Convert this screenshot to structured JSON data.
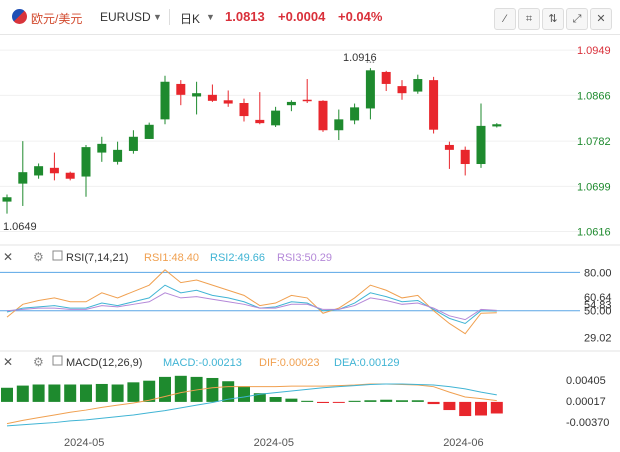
{
  "header": {
    "pair_name": "欧元/美元",
    "symbol": "EURUSD",
    "interval": "日K",
    "price": "1.0813",
    "change": "+0.0004",
    "change_pct": "+0.04%",
    "flag_icon": "eu-us-flag-icon",
    "tool_icons": [
      "draw-line-icon",
      "drawing-tools-icon",
      "indicator-icon",
      "fullscreen-icon",
      "close-icon"
    ]
  },
  "colors": {
    "up": "#1e8a2e",
    "down": "#e8262c",
    "rsi1": "#f0a050",
    "rsi2": "#40b4d4",
    "rsi3": "#b488d8",
    "dif": "#f0a050",
    "dea": "#40b4d4",
    "price_text": "#d9303a"
  },
  "chart_data": [
    {
      "type": "candlestick",
      "ylim": [
        1.0595,
        1.0975
      ],
      "price_ticks": [
        "1.0949",
        "1.0866",
        "1.0782",
        "1.0699",
        "1.0616"
      ],
      "price_tick_values": [
        1.0949,
        1.0866,
        1.0782,
        1.0699,
        1.0616
      ],
      "high_label": "1.0916",
      "low_label": "1.0649",
      "x_ticks": [
        "2024-05",
        "2024-05",
        "2024-06"
      ],
      "x_tick_index": [
        5,
        17,
        29
      ],
      "candles": [
        {
          "o": 1.0671,
          "h": 1.0684,
          "l": 1.0649,
          "c": 1.0679
        },
        {
          "o": 1.0704,
          "h": 1.0782,
          "l": 1.0663,
          "c": 1.0725
        },
        {
          "o": 1.0719,
          "h": 1.0741,
          "l": 1.0713,
          "c": 1.0736
        },
        {
          "o": 1.0733,
          "h": 1.0761,
          "l": 1.071,
          "c": 1.0723
        },
        {
          "o": 1.0724,
          "h": 1.0726,
          "l": 1.071,
          "c": 1.0713
        },
        {
          "o": 1.0717,
          "h": 1.0775,
          "l": 1.068,
          "c": 1.0771
        },
        {
          "o": 1.0761,
          "h": 1.079,
          "l": 1.0744,
          "c": 1.0777
        },
        {
          "o": 1.0744,
          "h": 1.0781,
          "l": 1.0739,
          "c": 1.0766
        },
        {
          "o": 1.0764,
          "h": 1.0802,
          "l": 1.0759,
          "c": 1.079
        },
        {
          "o": 1.0786,
          "h": 1.0816,
          "l": 1.0786,
          "c": 1.0812
        },
        {
          "o": 1.0822,
          "h": 1.0902,
          "l": 1.0813,
          "c": 1.0891
        },
        {
          "o": 1.0887,
          "h": 1.0894,
          "l": 1.0848,
          "c": 1.0867
        },
        {
          "o": 1.0864,
          "h": 1.0891,
          "l": 1.0831,
          "c": 1.087
        },
        {
          "o": 1.0867,
          "h": 1.0886,
          "l": 1.0854,
          "c": 1.0856
        },
        {
          "o": 1.0857,
          "h": 1.0875,
          "l": 1.0845,
          "c": 1.0851
        },
        {
          "o": 1.0852,
          "h": 1.086,
          "l": 1.0818,
          "c": 1.0828
        },
        {
          "o": 1.0821,
          "h": 1.0872,
          "l": 1.0813,
          "c": 1.0815
        },
        {
          "o": 1.0811,
          "h": 1.0845,
          "l": 1.0808,
          "c": 1.0838
        },
        {
          "o": 1.0848,
          "h": 1.0857,
          "l": 1.0837,
          "c": 1.0854
        },
        {
          "o": 1.0858,
          "h": 1.0896,
          "l": 1.0852,
          "c": 1.0856
        },
        {
          "o": 1.0856,
          "h": 1.0857,
          "l": 1.0799,
          "c": 1.0802
        },
        {
          "o": 1.0802,
          "h": 1.084,
          "l": 1.0784,
          "c": 1.0822
        },
        {
          "o": 1.082,
          "h": 1.0851,
          "l": 1.0813,
          "c": 1.0844
        },
        {
          "o": 1.0842,
          "h": 1.0916,
          "l": 1.0822,
          "c": 1.0912
        },
        {
          "o": 1.0909,
          "h": 1.0911,
          "l": 1.0874,
          "c": 1.0887
        },
        {
          "o": 1.0883,
          "h": 1.0894,
          "l": 1.0858,
          "c": 1.087
        },
        {
          "o": 1.0873,
          "h": 1.0904,
          "l": 1.0869,
          "c": 1.0896
        },
        {
          "o": 1.0894,
          "h": 1.09,
          "l": 1.0796,
          "c": 1.0803
        },
        {
          "o": 1.0775,
          "h": 1.0781,
          "l": 1.0731,
          "c": 1.0766
        },
        {
          "o": 1.0766,
          "h": 1.0772,
          "l": 1.0719,
          "c": 1.074
        },
        {
          "o": 1.074,
          "h": 1.0851,
          "l": 1.0733,
          "c": 1.081
        },
        {
          "o": 1.0809,
          "h": 1.0815,
          "l": 1.0807,
          "c": 1.0813
        }
      ]
    },
    {
      "type": "line",
      "title": "RSI(7,14,21)",
      "ylim": [
        20,
        85
      ],
      "y_ticks": [
        80.0,
        60.64,
        54.83,
        50.0,
        29.02
      ],
      "y_tick_labels": [
        "80.00",
        "60.64",
        "54.83",
        "50.00",
        "29.02"
      ],
      "reference_lines": [
        80,
        50
      ],
      "series": [
        {
          "name": "RSI1",
          "label": "RSI1:48.40",
          "values": [
            45,
            55,
            58,
            60,
            57,
            57,
            64,
            60,
            65,
            70,
            82,
            72,
            74,
            70,
            66,
            62,
            54,
            56,
            62,
            60,
            48,
            52,
            60,
            70,
            66,
            60,
            62,
            50,
            40,
            32,
            48,
            48.4
          ]
        },
        {
          "name": "RSI2",
          "label": "RSI2:49.66",
          "values": [
            49,
            52,
            53,
            54,
            52,
            52,
            56,
            54,
            57,
            60,
            70,
            64,
            66,
            62,
            60,
            57,
            52,
            53,
            57,
            56,
            50,
            51,
            56,
            64,
            61,
            57,
            58,
            51,
            44,
            40,
            50,
            49.66
          ]
        },
        {
          "name": "RSI3",
          "label": "RSI3:50.29",
          "values": [
            50,
            51,
            52,
            52,
            51,
            51,
            54,
            53,
            55,
            57,
            64,
            60,
            61,
            59,
            57,
            55,
            52,
            52,
            55,
            55,
            51,
            51,
            54,
            60,
            58,
            55,
            56,
            52,
            46,
            43,
            51,
            50.29
          ]
        }
      ]
    },
    {
      "type": "bar",
      "title": "MACD(12,26,9)",
      "ylim": [
        -0.0048,
        0.0055
      ],
      "y_ticks": [
        0.00405,
        0.00017,
        -0.0037
      ],
      "y_tick_labels": [
        "0.00405",
        "0.00017",
        "-0.00370"
      ],
      "series": [
        {
          "name": "MACD",
          "label": "MACD:-0.00213",
          "values": [
            0.0026,
            0.003,
            0.0032,
            0.0032,
            0.0032,
            0.0032,
            0.0033,
            0.0032,
            0.0036,
            0.0039,
            0.0046,
            0.0048,
            0.0046,
            0.0044,
            0.0038,
            0.0029,
            0.0016,
            0.0009,
            0.0006,
            0.0002,
            -0.0002,
            -0.0001,
            0.0002,
            0.0003,
            0.0004,
            0.0003,
            0.0003,
            -0.0004,
            -0.0015,
            -0.0026,
            -0.0025,
            -0.00213
          ]
        },
        {
          "name": "DIF",
          "label": "DIF:0.00023",
          "values": [
            -0.004,
            -0.0034,
            -0.0029,
            -0.0024,
            -0.0019,
            -0.0015,
            -0.001,
            -0.0006,
            -0.0002,
            0.0003,
            0.001,
            0.0017,
            0.0022,
            0.0026,
            0.0028,
            0.0028,
            0.0028,
            0.0028,
            0.0029,
            0.0029,
            0.0029,
            0.003,
            0.0031,
            0.0033,
            0.0033,
            0.0032,
            0.0031,
            0.0028,
            0.0018,
            0.0009,
            0.0006,
            0.00023
          ]
        },
        {
          "name": "DEA",
          "label": "DEA:0.00129",
          "values": [
            -0.0044,
            -0.0042,
            -0.004,
            -0.0038,
            -0.0035,
            -0.0033,
            -0.003,
            -0.0027,
            -0.0024,
            -0.002,
            -0.0016,
            -0.0011,
            -0.0006,
            -0.0001,
            0.0005,
            0.0009,
            0.0014,
            0.0017,
            0.002,
            0.0023,
            0.0026,
            0.0028,
            0.003,
            0.0032,
            0.0033,
            0.0033,
            0.0032,
            0.0031,
            0.0028,
            0.0024,
            0.0018,
            0.00129
          ]
        }
      ]
    }
  ]
}
